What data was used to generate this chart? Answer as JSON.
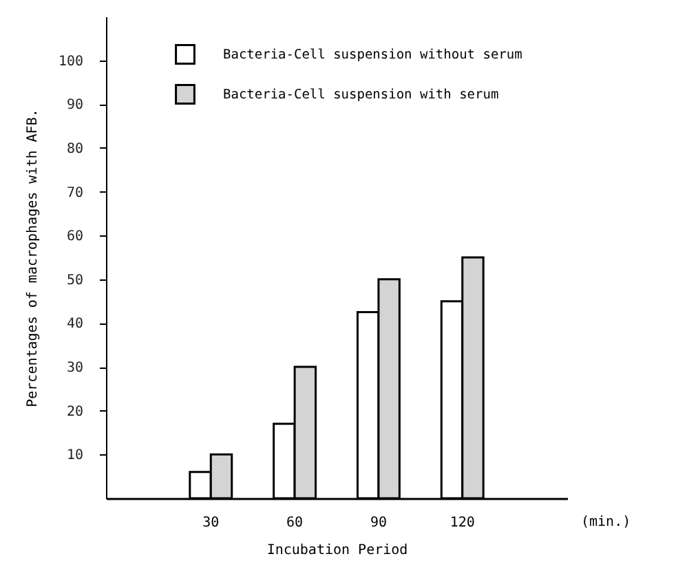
{
  "chart_data": {
    "type": "bar",
    "categories": [
      "30",
      "60",
      "90",
      "120"
    ],
    "series": [
      {
        "name": "Bacteria-Cell suspension without serum",
        "color": "#ffffff",
        "values": [
          6,
          17,
          42.5,
          45
        ]
      },
      {
        "name": "Bacteria-Cell suspension with serum",
        "color": "#d4d4d4",
        "values": [
          10,
          30,
          50,
          55
        ]
      }
    ],
    "xlabel": "Incubation Period",
    "ylabel": "Percentages of macrophages with AFB.",
    "annotations": [
      "(min.)"
    ],
    "ylim": [
      0,
      110
    ],
    "yticks": [
      10,
      20,
      30,
      40,
      50,
      60,
      70,
      80,
      90,
      100
    ],
    "grid": false,
    "legend": "top"
  }
}
